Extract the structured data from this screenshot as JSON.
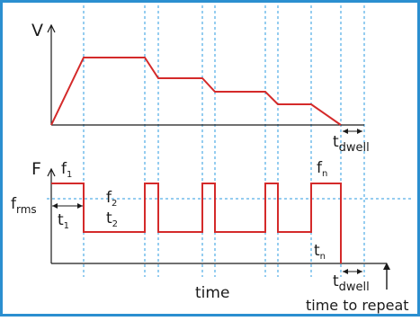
{
  "colors": {
    "border": "#2b8fd0",
    "grid": "#2b9be0",
    "signal": "#d42a2a",
    "axis": "#1a1a1a",
    "background": "#ffffff"
  },
  "voltage_panel": {
    "axis_label": "V",
    "dwell_label": "t",
    "dwell_sub": "dwell"
  },
  "force_panel": {
    "axis_label": "F",
    "f1": "f",
    "f1_sub": "1",
    "f2": "f",
    "f2_sub": "2",
    "fn": "f",
    "fn_sub": "n",
    "frms": "f",
    "frms_sub": "rms",
    "t1": "t",
    "t1_sub": "1",
    "t2": "t",
    "t2_sub": "2",
    "tn": "t",
    "tn_sub": "n",
    "dwell_label": "t",
    "dwell_sub": "dwell",
    "time_label": "time",
    "repeat_label": "time to repeat"
  }
}
